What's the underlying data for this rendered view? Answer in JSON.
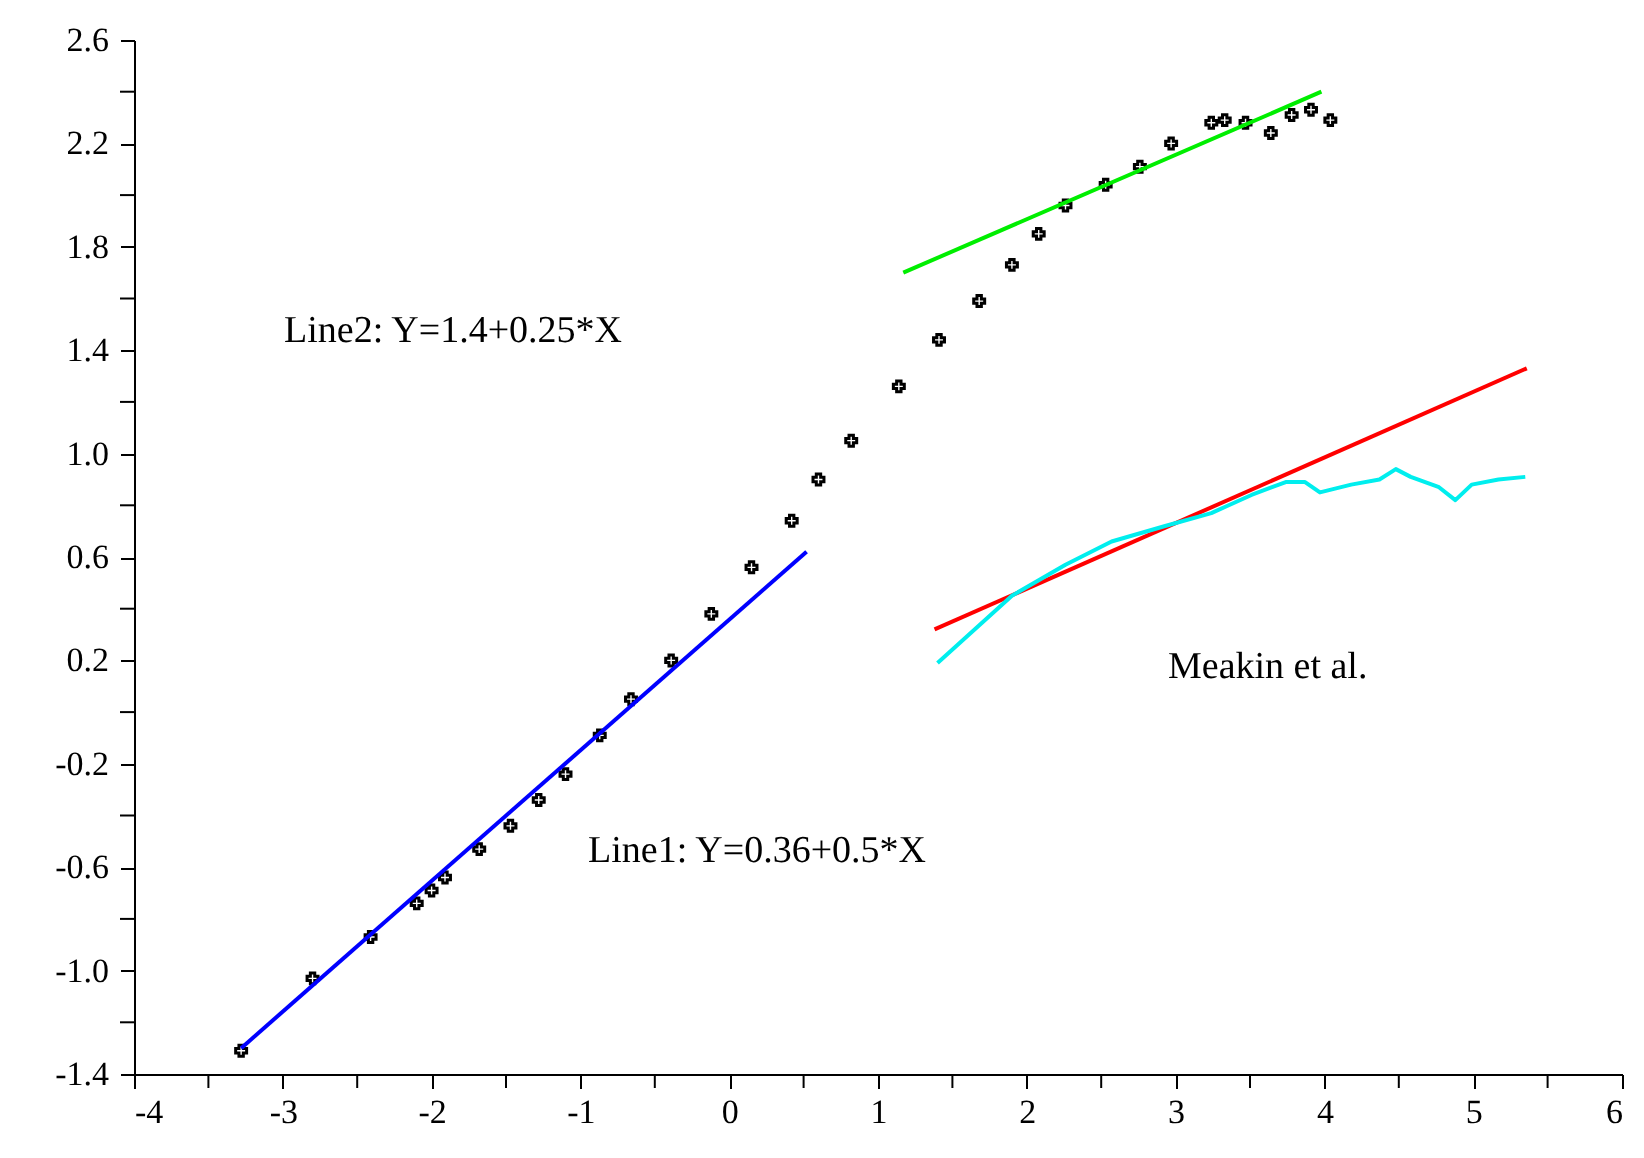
{
  "chart_data": {
    "type": "scatter",
    "xlim": [
      -4,
      6
    ],
    "ylim": [
      -1.4,
      2.6
    ],
    "xticks": [
      -4,
      {
        "value": -3.5,
        "label": null
      },
      -3,
      {
        "value": -2.5,
        "label": null
      },
      -2,
      {
        "value": -1.5,
        "label": null
      },
      -1,
      {
        "value": -0.5,
        "label": null
      },
      0,
      {
        "value": 0.5,
        "label": null
      },
      1,
      {
        "value": 1.5,
        "label": null
      },
      2,
      {
        "value": 2.5,
        "label": null
      },
      3,
      {
        "value": 3.5,
        "label": null
      },
      4,
      {
        "value": 4.5,
        "label": null
      },
      5,
      {
        "value": 5.5,
        "label": null
      },
      6
    ],
    "yticks": [
      {
        "value": -1.4,
        "label": "-1.4"
      },
      {
        "value": -1.2,
        "label": null
      },
      {
        "value": -1.0,
        "label": "-1.0"
      },
      {
        "value": -0.8,
        "label": null
      },
      {
        "value": -0.6,
        "label": "-0.6"
      },
      {
        "value": -0.4,
        "label": null
      },
      {
        "value": -0.2,
        "label": "-0.2"
      },
      {
        "value": 0.0,
        "label": null
      },
      {
        "value": 0.2,
        "label": "0.2"
      },
      {
        "value": 0.4,
        "label": null
      },
      {
        "value": 0.6,
        "label": "0.6"
      },
      {
        "value": 0.8,
        "label": null
      },
      {
        "value": 1.0,
        "label": "1.0"
      },
      {
        "value": 1.2,
        "label": null
      },
      {
        "value": 1.4,
        "label": "1.4"
      },
      {
        "value": 1.6,
        "label": null
      },
      {
        "value": 1.8,
        "label": "1.8"
      },
      {
        "value": 2.0,
        "label": null
      },
      {
        "value": 2.2,
        "label": "2.2"
      },
      {
        "value": 2.4,
        "label": null
      },
      {
        "value": 2.6,
        "label": "2.6"
      }
    ],
    "grid": false,
    "series": [
      {
        "marker": "cross",
        "color": "#000000",
        "x": [
          -3.28,
          -2.8,
          -2.41,
          -2.1,
          -2.0,
          -1.91,
          -1.68,
          -1.47,
          -1.28,
          -1.1,
          -0.87,
          -0.66,
          -0.39,
          -0.12,
          0.15,
          0.42,
          0.6,
          0.82,
          1.14,
          1.41,
          1.68,
          1.9,
          2.08,
          2.26,
          2.53,
          2.76,
          2.97,
          3.24,
          3.33,
          3.47,
          3.64,
          3.78,
          3.91,
          4.04
        ],
        "values": [
          -1.31,
          -1.03,
          -0.87,
          -0.74,
          -0.69,
          -0.64,
          -0.53,
          -0.44,
          -0.34,
          -0.24,
          -0.09,
          0.05,
          0.2,
          0.38,
          0.56,
          0.74,
          0.9,
          1.05,
          1.26,
          1.44,
          1.59,
          1.73,
          1.85,
          1.96,
          2.04,
          2.11,
          2.2,
          2.28,
          2.29,
          2.28,
          2.24,
          2.31,
          2.33,
          2.29
        ]
      },
      {
        "type": "line",
        "marker": "none",
        "color": "#0000ff",
        "x": [
          -3.28,
          0.52
        ],
        "values": [
          -1.3,
          0.62
        ]
      },
      {
        "type": "line",
        "marker": "none",
        "color": "#00ee00",
        "x": [
          1.17,
          3.98
        ],
        "values": [
          1.7,
          2.4
        ]
      },
      {
        "type": "line",
        "marker": "none",
        "color": "#ff0000",
        "x": [
          1.38,
          5.36
        ],
        "values": [
          0.32,
          1.33
        ]
      },
      {
        "type": "line",
        "marker": "none",
        "color": "#00eeee",
        "x": [
          1.4,
          1.9,
          2.26,
          2.57,
          2.93,
          3.24,
          3.51,
          3.74,
          3.87,
          3.97,
          4.18,
          4.37,
          4.48,
          4.58,
          4.77,
          4.88,
          4.99,
          5.17,
          5.35
        ],
        "values": [
          0.19,
          0.45,
          0.57,
          0.66,
          0.72,
          0.77,
          0.84,
          0.89,
          0.89,
          0.85,
          0.88,
          0.9,
          0.94,
          0.91,
          0.87,
          0.82,
          0.88,
          0.9,
          0.91
        ]
      }
    ],
    "annotations": [
      "Line2: Y=1.4+0.25*X",
      "Line1: Y=0.36+0.5*X",
      "Meakin et al."
    ]
  }
}
